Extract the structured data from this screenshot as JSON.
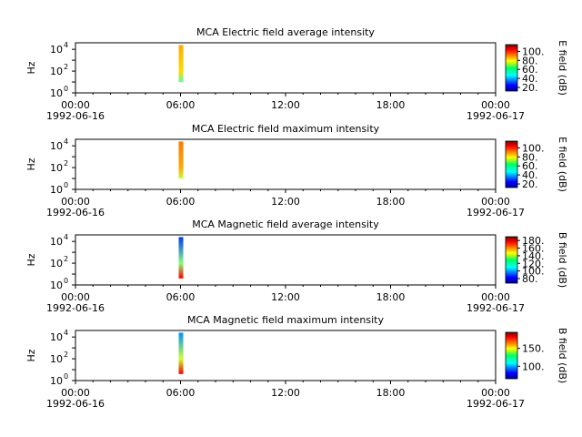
{
  "chart_data": [
    {
      "type": "heatmap",
      "title": "MCA  Electric field average intensity",
      "ylabel": "Hz",
      "colorbar_label": "E field (dB)",
      "colorbar_ticks": [
        "20.",
        "40.",
        "60.",
        "80.",
        "100."
      ],
      "colorbar_range": [
        12,
        115
      ],
      "x_tick_times": [
        "00:00",
        "06:00",
        "12:00",
        "18:00",
        "00:00"
      ],
      "x_tick_dates": [
        "1992-06-16",
        "",
        "",
        "",
        "1992-06-17"
      ],
      "y_ticks": [
        {
          "base": "10",
          "exp": "0"
        },
        {
          "base": "10",
          "exp": "2"
        },
        {
          "base": "10",
          "exp": "4"
        }
      ],
      "xlim_hours": [
        0,
        24
      ],
      "ylim_log10": [
        0,
        4.6
      ],
      "data_columns": [
        {
          "t": 6.0,
          "bottom": [
            1.0,
            60
          ],
          "mid": [
            2.0,
            80
          ],
          "top": [
            4.4,
            85
          ]
        }
      ]
    },
    {
      "type": "heatmap",
      "title": "MCA  Electric field maximum intensity",
      "ylabel": "Hz",
      "colorbar_label": "E field (dB)",
      "colorbar_ticks": [
        "20.",
        "40.",
        "60.",
        "80.",
        "100."
      ],
      "colorbar_range": [
        12,
        115
      ],
      "x_tick_times": [
        "00:00",
        "06:00",
        "12:00",
        "18:00",
        "00:00"
      ],
      "x_tick_dates": [
        "1992-06-16",
        "",
        "",
        "",
        "1992-06-17"
      ],
      "y_ticks": [
        {
          "base": "10",
          "exp": "0"
        },
        {
          "base": "10",
          "exp": "2"
        },
        {
          "base": "10",
          "exp": "4"
        }
      ],
      "xlim_hours": [
        0,
        24
      ],
      "ylim_log10": [
        0,
        4.6
      ],
      "data_columns": [
        {
          "t": 6.0,
          "bottom": [
            1.0,
            70
          ],
          "mid": [
            2.0,
            85
          ],
          "top": [
            4.4,
            90
          ]
        }
      ]
    },
    {
      "type": "heatmap",
      "title": "MCA  Magnetic field average intensity",
      "ylabel": "Hz",
      "colorbar_label": "B field (dB)",
      "colorbar_ticks": [
        "80.",
        "100.",
        "120.",
        "140.",
        "160.",
        "180."
      ],
      "colorbar_range": [
        68,
        190
      ],
      "x_tick_times": [
        "00:00",
        "06:00",
        "12:00",
        "18:00",
        "00:00"
      ],
      "x_tick_dates": [
        "1992-06-16",
        "",
        "",
        "",
        "1992-06-17"
      ],
      "y_ticks": [
        {
          "base": "10",
          "exp": "0"
        },
        {
          "base": "10",
          "exp": "2"
        },
        {
          "base": "10",
          "exp": "4"
        }
      ],
      "xlim_hours": [
        0,
        24
      ],
      "ylim_log10": [
        0,
        4.6
      ],
      "data_columns": [
        {
          "t": 6.0,
          "bottom": [
            0.6,
            175
          ],
          "mid": [
            2.0,
            130
          ],
          "top": [
            4.4,
            90
          ]
        }
      ]
    },
    {
      "type": "heatmap",
      "title": "MCA  Magnetic field maximum intensity",
      "ylabel": "Hz",
      "colorbar_label": "B field (dB)",
      "colorbar_ticks": [
        "100.",
        "150."
      ],
      "colorbar_range": [
        65,
        195
      ],
      "x_tick_times": [
        "00:00",
        "06:00",
        "12:00",
        "18:00",
        "00:00"
      ],
      "x_tick_dates": [
        "1992-06-16",
        "",
        "",
        "",
        "1992-06-17"
      ],
      "y_ticks": [
        {
          "base": "10",
          "exp": "0"
        },
        {
          "base": "10",
          "exp": "2"
        },
        {
          "base": "10",
          "exp": "4"
        }
      ],
      "xlim_hours": [
        0,
        24
      ],
      "ylim_log10": [
        0,
        4.6
      ],
      "data_columns": [
        {
          "t": 6.0,
          "bottom": [
            0.6,
            180
          ],
          "mid": [
            2.0,
            140
          ],
          "top": [
            4.4,
            100
          ]
        }
      ]
    }
  ]
}
